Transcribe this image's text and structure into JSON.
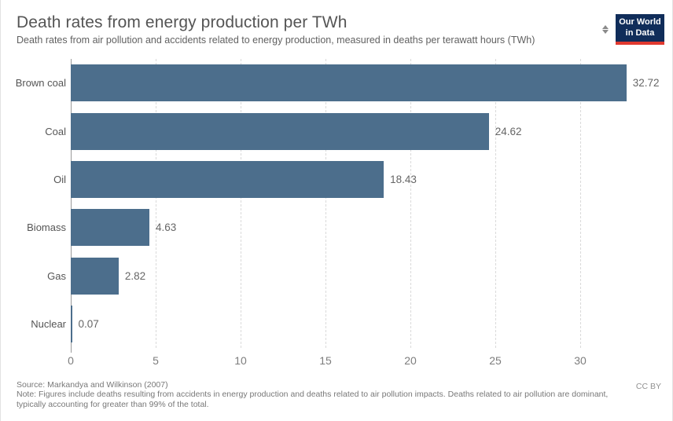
{
  "header": {
    "title": "Death rates from energy production per TWh",
    "subtitle": "Death rates from air pollution and accidents related to energy production, measured in deaths per terawatt hours (TWh)"
  },
  "logo": {
    "line1": "Our World",
    "line2": "in Data"
  },
  "chart_data": {
    "type": "bar",
    "orientation": "horizontal",
    "title": "Death rates from energy production per TWh",
    "categories": [
      "Brown coal",
      "Coal",
      "Oil",
      "Biomass",
      "Gas",
      "Nuclear"
    ],
    "values": [
      32.72,
      24.62,
      18.43,
      4.63,
      2.82,
      0.07
    ],
    "value_labels": [
      "32.72",
      "24.62",
      "18.43",
      "4.63",
      "2.82",
      "0.07"
    ],
    "x_ticks": [
      0,
      5,
      10,
      15,
      20,
      25,
      30
    ],
    "xlim": [
      0,
      33.8
    ],
    "xlabel": "",
    "ylabel": "",
    "grid": "dashed-vertical",
    "legend": "none",
    "bar_color": "#4c6e8c"
  },
  "footer": {
    "source": "Source: Markandya and Wilkinson (2007)",
    "note": "Note: Figures include deaths resulting from accidents in energy production and deaths related to air pollution impacts. Deaths related to air pollution are dominant, typically accounting for greater than 99% of the total.",
    "license": "CC BY"
  },
  "colors": {
    "bar": "#4c6e8c",
    "logo_background": "#102d5a",
    "logo_accent_red": "#e0392f",
    "title_text": "#555555",
    "axis_text": "#7d7d7d",
    "gridline": "#dadada"
  }
}
